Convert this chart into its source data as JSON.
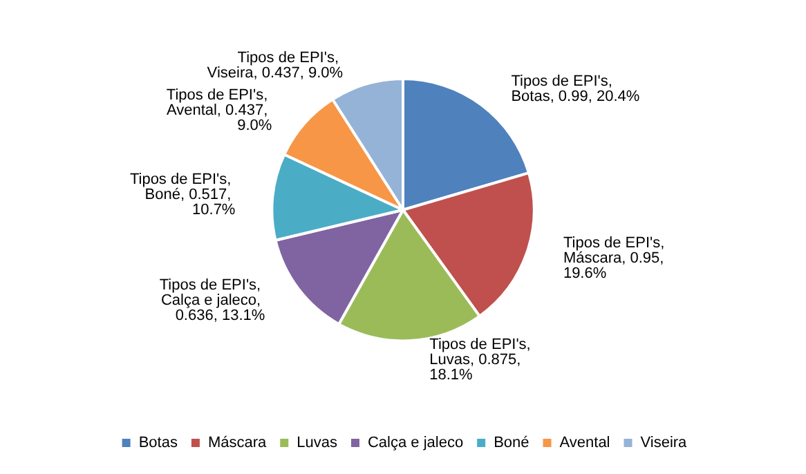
{
  "chart_data": {
    "type": "pie",
    "categories": [
      "Botas",
      "Máscara",
      "Luvas",
      "Calça e jaleco",
      "Boné",
      "Avental",
      "Viseira"
    ],
    "series": [
      {
        "values": [
          0.99,
          0.95,
          0.875,
          0.636,
          0.517,
          0.437,
          0.437
        ],
        "value_labels": [
          "Tipos de EPI's, Botas, 0.99, 20.4%",
          "Tipos de EPI's, Máscara, 0.95, 19.6%",
          "Tipos de EPI's, Luvas, 0.875, 18.1%",
          "Tipos de EPI's, Calça e jaleco, 0.636, 13.1%",
          "Tipos de EPI's, Boné, 0.517, 10.7%",
          "Tipos de EPI's, Avental, 0.437, 9.0%",
          "Tipos de EPI's, Viseira, 0.437, 9.0%"
        ]
      }
    ],
    "colors": [
      "#4f81bd",
      "#c0504d",
      "#9bbb59",
      "#8064a2",
      "#4bacc6",
      "#f79646",
      "#95b3d7"
    ],
    "legend": "bottom"
  }
}
